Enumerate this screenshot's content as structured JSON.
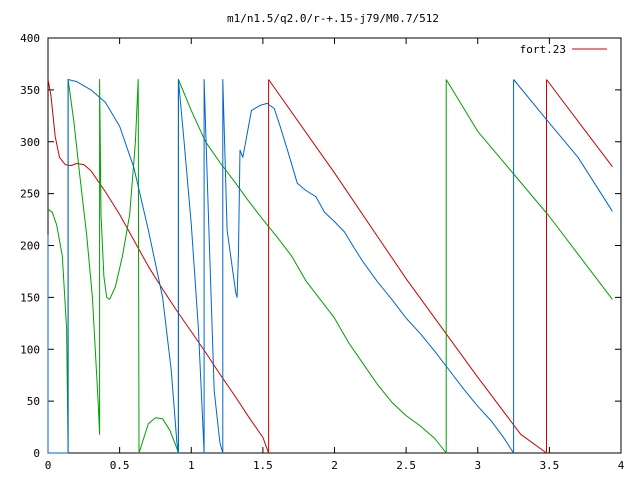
{
  "chart_data": {
    "type": "line",
    "title": "m1/n1.5/q2.0/r-+.15-j79/M0.7/512",
    "xlabel": "",
    "ylabel": "",
    "xlim": [
      0,
      4
    ],
    "ylim": [
      0,
      400
    ],
    "grid": false,
    "legend_position": "top-right",
    "x_ticks": [
      {
        "value": 0,
        "label": "0"
      },
      {
        "value": 0.5,
        "label": "0.5"
      },
      {
        "value": 1,
        "label": "1"
      },
      {
        "value": 1.5,
        "label": "1.5"
      },
      {
        "value": 2,
        "label": "2"
      },
      {
        "value": 2.5,
        "label": "2.5"
      },
      {
        "value": 3,
        "label": "3"
      },
      {
        "value": 3.5,
        "label": "3.5"
      },
      {
        "value": 4,
        "label": "4"
      }
    ],
    "y_ticks": [
      {
        "value": 0,
        "label": "0"
      },
      {
        "value": 50,
        "label": "50"
      },
      {
        "value": 100,
        "label": "100"
      },
      {
        "value": 150,
        "label": "150"
      },
      {
        "value": 200,
        "label": "200"
      },
      {
        "value": 250,
        "label": "250"
      },
      {
        "value": 300,
        "label": "300"
      },
      {
        "value": 350,
        "label": "350"
      },
      {
        "value": 400,
        "label": "400"
      }
    ],
    "series": [
      {
        "name": "fort.23",
        "color": "#cc0000",
        "points": [
          [
            0,
            360
          ],
          [
            0.02,
            345
          ],
          [
            0.05,
            305
          ],
          [
            0.08,
            285
          ],
          [
            0.12,
            278
          ],
          [
            0.16,
            277
          ],
          [
            0.2,
            279
          ],
          [
            0.25,
            278
          ],
          [
            0.3,
            272
          ],
          [
            0.4,
            252
          ],
          [
            0.5,
            230
          ],
          [
            0.6,
            205
          ],
          [
            0.7,
            180
          ],
          [
            0.8,
            158
          ],
          [
            0.9,
            137
          ],
          [
            1.0,
            117
          ],
          [
            1.1,
            97
          ],
          [
            1.2,
            76
          ],
          [
            1.3,
            56
          ],
          [
            1.4,
            35
          ],
          [
            1.5,
            15
          ],
          [
            1.54,
            0
          ],
          null,
          [
            1.54,
            0
          ],
          [
            1.54,
            360
          ],
          null,
          [
            1.54,
            360
          ],
          [
            2.0,
            270
          ],
          [
            2.5,
            168
          ],
          [
            3.0,
            73
          ],
          [
            3.3,
            18
          ],
          [
            3.48,
            0
          ],
          null,
          [
            3.48,
            0
          ],
          [
            3.48,
            360
          ],
          null,
          [
            3.48,
            360
          ],
          [
            3.94,
            276
          ]
        ]
      },
      {
        "name": "",
        "color": "#00a000",
        "points": [
          [
            0,
            235
          ],
          [
            0.03,
            232
          ],
          [
            0.06,
            220
          ],
          [
            0.1,
            190
          ],
          [
            0.13,
            120
          ],
          [
            0.14,
            0
          ],
          [
            0.14,
            360
          ],
          [
            0.18,
            320
          ],
          [
            0.22,
            270
          ],
          [
            0.27,
            210
          ],
          [
            0.31,
            150
          ],
          [
            0.35,
            50
          ],
          [
            0.36,
            18
          ],
          [
            0.36,
            360
          ],
          [
            0.37,
            230
          ],
          [
            0.39,
            170
          ],
          [
            0.41,
            150
          ],
          [
            0.43,
            148
          ],
          [
            0.47,
            160
          ],
          [
            0.52,
            190
          ],
          [
            0.57,
            230
          ],
          [
            0.61,
            300
          ],
          [
            0.63,
            360
          ],
          [
            0.635,
            0
          ],
          [
            0.67,
            15
          ],
          [
            0.7,
            28
          ],
          [
            0.75,
            34
          ],
          [
            0.8,
            33
          ],
          [
            0.85,
            22
          ],
          [
            0.89,
            8
          ],
          [
            0.91,
            0
          ],
          [
            0.91,
            360
          ],
          [
            1.0,
            330
          ],
          [
            1.1,
            300
          ],
          [
            1.2,
            280
          ],
          [
            1.3,
            262
          ],
          [
            1.4,
            243
          ],
          [
            1.5,
            225
          ],
          [
            1.6,
            208
          ],
          [
            1.7,
            190
          ],
          [
            1.8,
            166
          ],
          [
            1.9,
            148
          ],
          [
            2.0,
            130
          ],
          [
            2.1,
            106
          ],
          [
            2.2,
            86
          ],
          [
            2.3,
            66
          ],
          [
            2.4,
            49
          ],
          [
            2.5,
            36
          ],
          [
            2.6,
            26
          ],
          [
            2.7,
            14
          ],
          [
            2.78,
            0
          ],
          null,
          [
            2.78,
            0
          ],
          [
            2.78,
            360
          ],
          null,
          [
            2.78,
            360
          ],
          [
            3.0,
            310
          ],
          [
            3.5,
            228
          ],
          [
            3.94,
            148
          ]
        ]
      },
      {
        "name": "",
        "color": "#0066cc",
        "points": [
          [
            0.0,
            0
          ],
          [
            0.0,
            210
          ],
          null,
          [
            0.0,
            0
          ],
          [
            0.14,
            0
          ],
          [
            0.14,
            360
          ],
          [
            0.2,
            358
          ],
          [
            0.3,
            350
          ],
          [
            0.4,
            338
          ],
          [
            0.5,
            315
          ],
          [
            0.6,
            275
          ],
          [
            0.7,
            215
          ],
          [
            0.8,
            150
          ],
          [
            0.86,
            80
          ],
          [
            0.9,
            10
          ],
          [
            0.91,
            0
          ],
          [
            0.91,
            360
          ],
          [
            0.95,
            300
          ],
          [
            1.0,
            220
          ],
          [
            1.05,
            120
          ],
          [
            1.08,
            30
          ],
          [
            1.09,
            0
          ],
          [
            1.09,
            360
          ],
          [
            1.12,
            230
          ],
          [
            1.16,
            60
          ],
          [
            1.2,
            10
          ],
          [
            1.22,
            0
          ],
          [
            1.22,
            360
          ],
          [
            1.25,
            215
          ],
          [
            1.29,
            175
          ],
          [
            1.31,
            155
          ],
          [
            1.32,
            150
          ],
          [
            1.33,
            195
          ],
          [
            1.34,
            292
          ],
          [
            1.36,
            285
          ],
          [
            1.38,
            300
          ],
          [
            1.42,
            330
          ],
          [
            1.48,
            335
          ],
          [
            1.53,
            337
          ],
          [
            1.58,
            332
          ],
          [
            1.62,
            315
          ],
          [
            1.68,
            288
          ],
          [
            1.74,
            260
          ],
          [
            1.8,
            253
          ],
          [
            1.87,
            247
          ],
          [
            1.93,
            232
          ],
          [
            2.0,
            223
          ],
          [
            2.07,
            213
          ],
          [
            2.14,
            197
          ],
          [
            2.2,
            184
          ],
          [
            2.3,
            165
          ],
          [
            2.4,
            148
          ],
          [
            2.5,
            130
          ],
          [
            2.6,
            115
          ],
          [
            2.7,
            98
          ],
          [
            2.8,
            80
          ],
          [
            2.9,
            62
          ],
          [
            3.0,
            45
          ],
          [
            3.1,
            30
          ],
          [
            3.18,
            15
          ],
          [
            3.25,
            0
          ],
          null,
          [
            3.25,
            0
          ],
          [
            3.25,
            360
          ],
          null,
          [
            3.25,
            360
          ],
          [
            3.5,
            318
          ],
          [
            3.7,
            285
          ],
          [
            3.94,
            233
          ]
        ]
      }
    ]
  }
}
